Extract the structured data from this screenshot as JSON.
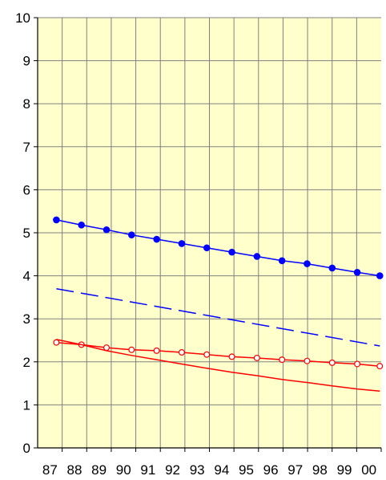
{
  "chart_data": {
    "type": "line",
    "title": "",
    "xlabel": "",
    "ylabel": "",
    "x_tick_labels": [
      "87",
      "88",
      "89",
      "90",
      "91",
      "92",
      "93",
      "94",
      "95",
      "96",
      "97",
      "98",
      "99",
      "00"
    ],
    "y_tick_labels": [
      "0",
      "1",
      "2",
      "3",
      "4",
      "5",
      "6",
      "7",
      "8",
      "9",
      "10"
    ],
    "ylim": [
      0,
      10
    ],
    "xlim": [
      87,
      100
    ],
    "grid": true,
    "legend": "none",
    "plot_background": "#ffffcc",
    "series": [
      {
        "style": "solid-line-filled-markers",
        "color": "#0000ff",
        "x": [
          87.3,
          88.3,
          89.3,
          90.3,
          91.3,
          92.3,
          93.3,
          94.3,
          95.3,
          96.3,
          97.3,
          98.3,
          99.3,
          100.2
        ],
        "values": [
          5.3,
          5.18,
          5.07,
          4.95,
          4.85,
          4.75,
          4.65,
          4.55,
          4.45,
          4.35,
          4.28,
          4.18,
          4.08,
          4.0
        ]
      },
      {
        "style": "dashed-line",
        "color": "#0000ff",
        "x": [
          87.3,
          100.2
        ],
        "values": [
          3.7,
          2.37
        ]
      },
      {
        "style": "solid-line-hollow-markers",
        "color": "#ff0000",
        "x": [
          87.3,
          88.3,
          89.3,
          90.3,
          91.3,
          92.3,
          93.3,
          94.3,
          95.3,
          96.3,
          97.3,
          98.3,
          99.3,
          100.2
        ],
        "values": [
          2.45,
          2.4,
          2.33,
          2.28,
          2.26,
          2.22,
          2.17,
          2.12,
          2.09,
          2.05,
          2.02,
          1.98,
          1.95,
          1.9
        ]
      },
      {
        "style": "solid-line",
        "color": "#ff0000",
        "x": [
          87.3,
          88.3,
          89.3,
          90.3,
          91.3,
          92.3,
          93.3,
          94.3,
          95.3,
          96.3,
          97.3,
          98.3,
          99.3,
          100.2
        ],
        "values": [
          2.52,
          2.4,
          2.26,
          2.15,
          2.05,
          1.95,
          1.85,
          1.76,
          1.68,
          1.59,
          1.52,
          1.44,
          1.37,
          1.32
        ]
      }
    ]
  }
}
